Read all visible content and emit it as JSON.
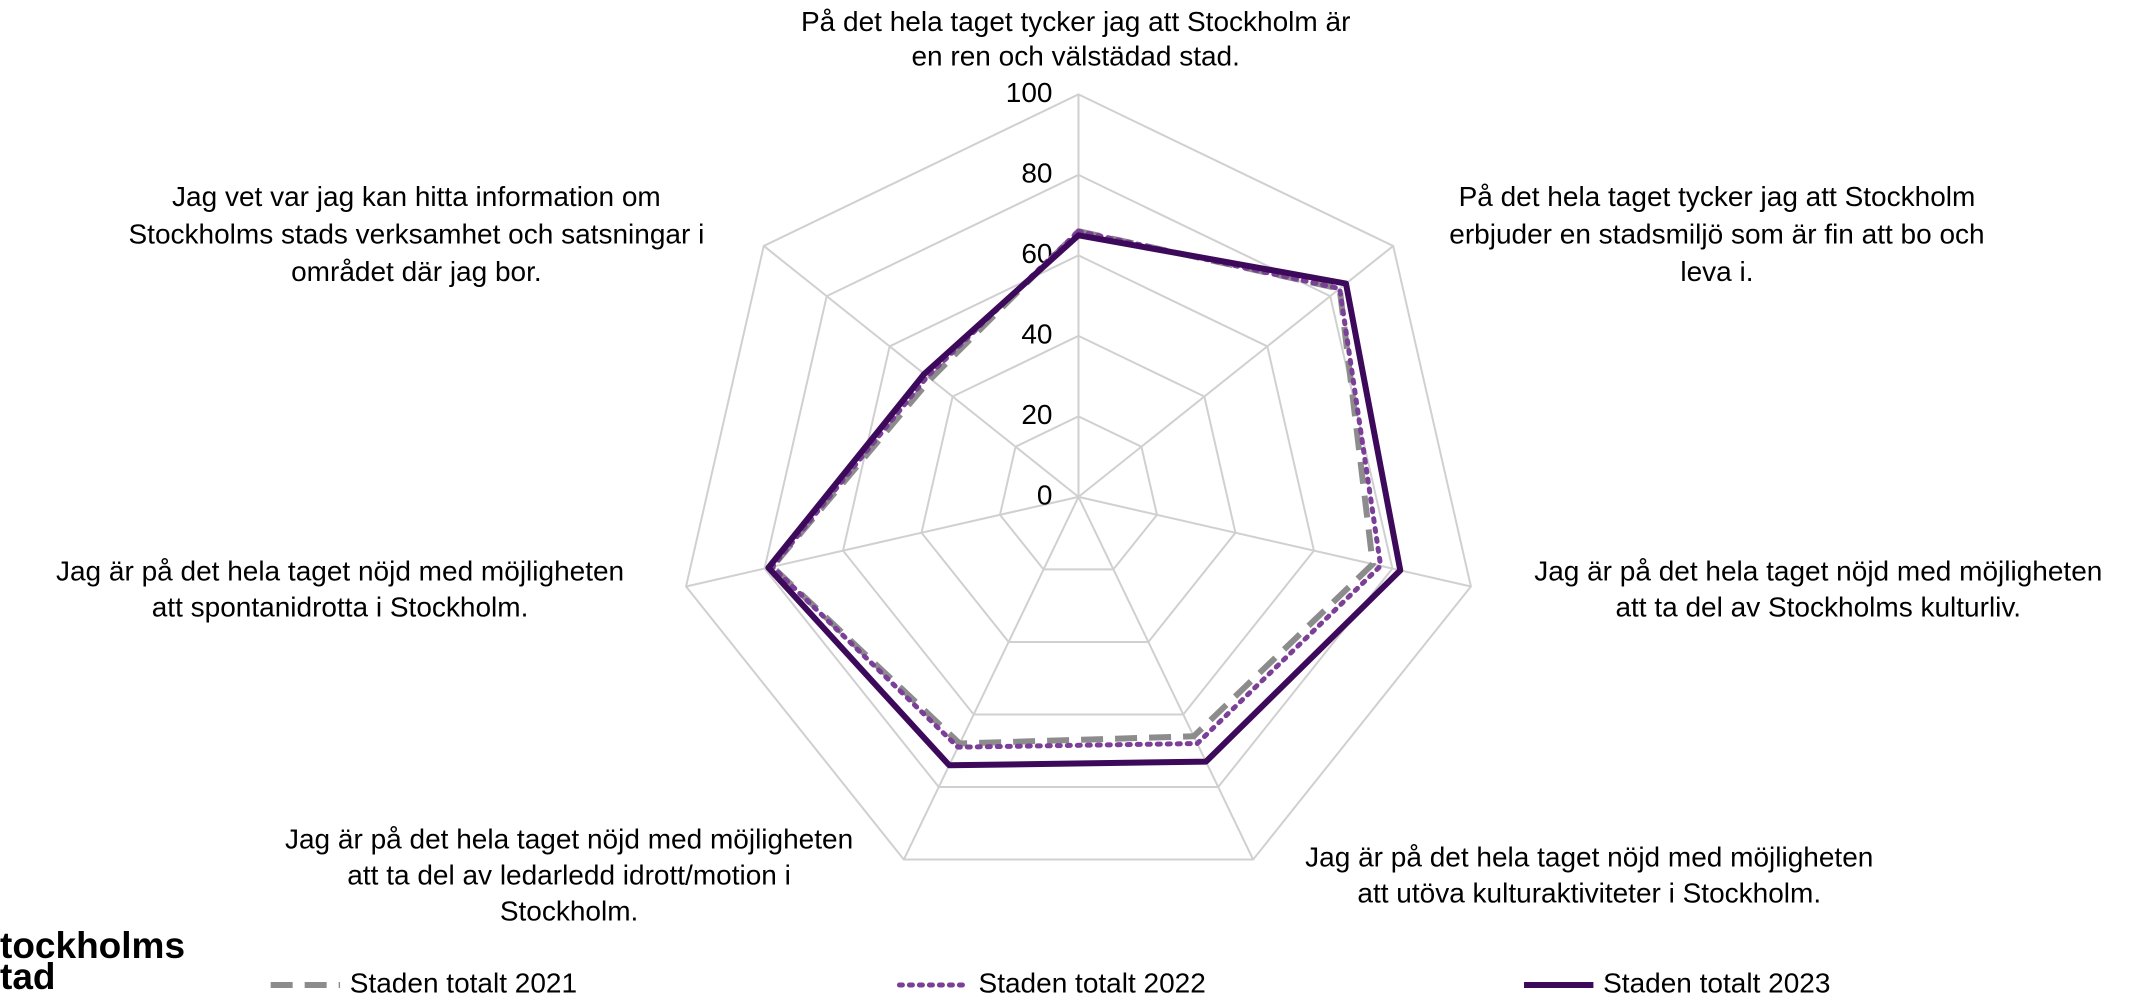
{
  "chart_data": {
    "type": "radar",
    "categories": [
      [
        "På det hela taget tycker jag att Stockholm är",
        "en ren och välstädad stad."
      ],
      [
        "På det hela taget tycker jag att Stockholm",
        "erbjuder en stadsmiljö som är fin att bo och",
        "leva i."
      ],
      [
        "Jag är på det hela taget nöjd med möjligheten",
        "att ta del av Stockholms kulturliv."
      ],
      [
        "Jag är på det hela taget nöjd med möjligheten",
        "att utöva kulturaktiviteter i Stockholm."
      ],
      [
        "Jag är på det hela taget nöjd med möjligheten",
        "att ta del av ledarledd idrott/motion i",
        "Stockholm."
      ],
      [
        "Jag är på det hela taget nöjd med möjligheten",
        "att spontanidrotta i Stockholm."
      ],
      [
        "Jag vet var jag kan hitta information om",
        "Stockholms stads verksamhet och satsningar i",
        "området där jag bor."
      ]
    ],
    "series": [
      {
        "name": "Staden totalt 2021",
        "color": "#8c8c8c",
        "dash": "dashed",
        "values": [
          66,
          83,
          75,
          66,
          68,
          78,
          47
        ]
      },
      {
        "name": "Staden totalt 2022",
        "color": "#7b3f98",
        "dash": "dotted",
        "values": [
          66,
          83,
          77,
          68,
          69,
          78,
          48
        ]
      },
      {
        "name": "Staden totalt 2023",
        "color": "#3d0a5b",
        "dash": "solid",
        "values": [
          65,
          85,
          82,
          73,
          74,
          79,
          49
        ]
      }
    ],
    "rlim": [
      0,
      100
    ],
    "rticks": [
      0,
      20,
      40,
      60,
      80,
      100
    ],
    "grid": true,
    "legend": "bottom"
  },
  "logo": [
    "tockholms",
    "tad"
  ]
}
